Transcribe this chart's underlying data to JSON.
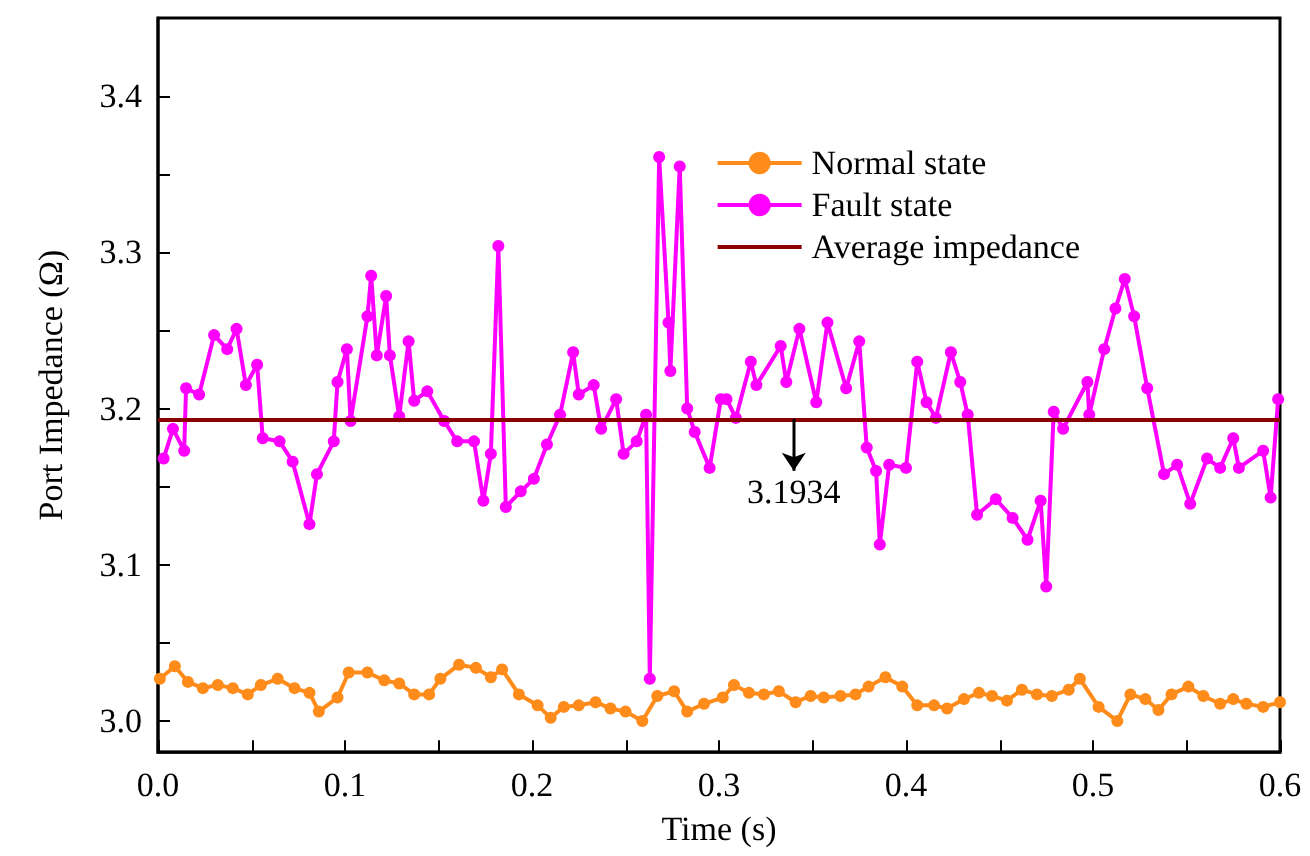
{
  "chart_data": {
    "type": "line",
    "xlabel": "Time (s)",
    "ylabel": "Port Impedance (Ω)",
    "xlim": [
      0,
      0.6
    ],
    "xticks": [
      {
        "value": 0,
        "label": "0.0"
      },
      {
        "value": 0.05,
        "label": null
      },
      0.1,
      {
        "value": 0.15,
        "label": null
      },
      0.2,
      {
        "value": 0.25,
        "label": null
      },
      0.3,
      {
        "value": 0.35,
        "label": null
      },
      0.4,
      {
        "value": 0.45,
        "label": null
      },
      0.5,
      {
        "value": 0.55,
        "label": null
      },
      0.6
    ],
    "ylim": [
      2.98,
      3.45
    ],
    "yticks": [
      {
        "value": 3,
        "label": "3.0"
      },
      {
        "value": 3.05,
        "label": null
      },
      3.1,
      {
        "value": 3.15,
        "label": null
      },
      3.2,
      {
        "value": 3.25,
        "label": null
      },
      3.3,
      {
        "value": 3.35,
        "label": null
      },
      3.4
    ],
    "grid": false,
    "legend": "top right",
    "marker": "circle",
    "line_style": "solid",
    "series": [
      {
        "name": "Normal state",
        "color": "#ff8c1a",
        "x": [
          0.001,
          0.009,
          0.016,
          0.024,
          0.032,
          0.04,
          0.048,
          0.055,
          0.064,
          0.073,
          0.081,
          0.086,
          0.096,
          0.102,
          0.112,
          0.121,
          0.129,
          0.137,
          0.145,
          0.151,
          0.161,
          0.17,
          0.178,
          0.184,
          0.193,
          0.203,
          0.21,
          0.217,
          0.225,
          0.234,
          0.242,
          0.25,
          0.259,
          0.267,
          0.276,
          0.283,
          0.292,
          0.302,
          0.308,
          0.316,
          0.324,
          0.332,
          0.341,
          0.349,
          0.356,
          0.365,
          0.373,
          0.38,
          0.389,
          0.398,
          0.406,
          0.415,
          0.422,
          0.431,
          0.439,
          0.446,
          0.454,
          0.462,
          0.47,
          0.478,
          0.487,
          0.493,
          0.503,
          0.513,
          0.52,
          0.528,
          0.535,
          0.542,
          0.551,
          0.559,
          0.568,
          0.575,
          0.582,
          0.591,
          0.6
        ],
        "values": [
          3.027,
          3.035,
          3.025,
          3.021,
          3.023,
          3.021,
          3.017,
          3.023,
          3.027,
          3.021,
          3.018,
          3.006,
          3.015,
          3.031,
          3.031,
          3.026,
          3.024,
          3.017,
          3.017,
          3.027,
          3.036,
          3.034,
          3.028,
          3.033,
          3.017,
          3.01,
          3.002,
          3.009,
          3.01,
          3.012,
          3.008,
          3.006,
          3.0,
          3.016,
          3.019,
          3.006,
          3.011,
          3.015,
          3.023,
          3.018,
          3.017,
          3.019,
          3.012,
          3.016,
          3.015,
          3.016,
          3.017,
          3.022,
          3.028,
          3.022,
          3.01,
          3.01,
          3.008,
          3.014,
          3.018,
          3.016,
          3.013,
          3.02,
          3.017,
          3.016,
          3.02,
          3.027,
          3.009,
          3.0,
          3.017,
          3.014,
          3.007,
          3.017,
          3.022,
          3.016,
          3.011,
          3.014,
          3.011,
          3.009,
          3.012
        ]
      },
      {
        "name": "Fault state",
        "color": "#ff00ff",
        "x": [
          0.003,
          0.008,
          0.014,
          0.015,
          0.022,
          0.03,
          0.037,
          0.042,
          0.047,
          0.053,
          0.056,
          0.065,
          0.072,
          0.081,
          0.085,
          0.094,
          0.096,
          0.101,
          0.103,
          0.112,
          0.114,
          0.117,
          0.122,
          0.124,
          0.129,
          0.134,
          0.137,
          0.144,
          0.153,
          0.16,
          0.169,
          0.174,
          0.178,
          0.182,
          0.186,
          0.194,
          0.201,
          0.208,
          0.215,
          0.222,
          0.225,
          0.233,
          0.237,
          0.245,
          0.249,
          0.256,
          0.261,
          0.263,
          0.268,
          0.273,
          0.274,
          0.279,
          0.283,
          0.287,
          0.295,
          0.301,
          0.304,
          0.309,
          0.317,
          0.32,
          0.333,
          0.336,
          0.343,
          0.352,
          0.358,
          0.368,
          0.375,
          0.379,
          0.384,
          0.386,
          0.391,
          0.4,
          0.406,
          0.411,
          0.416,
          0.424,
          0.429,
          0.433,
          0.438,
          0.448,
          0.457,
          0.465,
          0.472,
          0.475,
          0.479,
          0.484,
          0.497,
          0.498,
          0.506,
          0.512,
          0.517,
          0.522,
          0.529,
          0.538,
          0.545,
          0.552,
          0.561,
          0.568,
          0.575,
          0.578,
          0.591,
          0.595,
          0.599
        ],
        "values": [
          3.168,
          3.187,
          3.173,
          3.213,
          3.209,
          3.247,
          3.238,
          3.251,
          3.215,
          3.228,
          3.181,
          3.179,
          3.166,
          3.126,
          3.158,
          3.179,
          3.217,
          3.238,
          3.192,
          3.259,
          3.285,
          3.234,
          3.272,
          3.234,
          3.195,
          3.243,
          3.205,
          3.211,
          3.192,
          3.179,
          3.179,
          3.141,
          3.171,
          3.304,
          3.137,
          3.147,
          3.155,
          3.177,
          3.196,
          3.236,
          3.209,
          3.215,
          3.187,
          3.206,
          3.171,
          3.179,
          3.196,
          3.027,
          3.361,
          3.255,
          3.224,
          3.355,
          3.2,
          3.185,
          3.162,
          3.206,
          3.206,
          3.194,
          3.23,
          3.215,
          3.24,
          3.217,
          3.251,
          3.204,
          3.255,
          3.213,
          3.243,
          3.175,
          3.16,
          3.113,
          3.164,
          3.162,
          3.23,
          3.204,
          3.194,
          3.236,
          3.217,
          3.196,
          3.132,
          3.142,
          3.13,
          3.116,
          3.141,
          3.086,
          3.198,
          3.187,
          3.217,
          3.196,
          3.238,
          3.264,
          3.283,
          3.259,
          3.213,
          3.158,
          3.164,
          3.139,
          3.168,
          3.162,
          3.181,
          3.162,
          3.173,
          3.143,
          3.206
        ]
      }
    ],
    "ref_lines": [
      {
        "axis": "y",
        "value": 3.1934,
        "label": "Average impedance",
        "color": "#8b0000",
        "line_style": "solid"
      }
    ],
    "annotations": [
      {
        "text": "3.1934",
        "x": 0.34,
        "y": 3.1934
      }
    ]
  }
}
